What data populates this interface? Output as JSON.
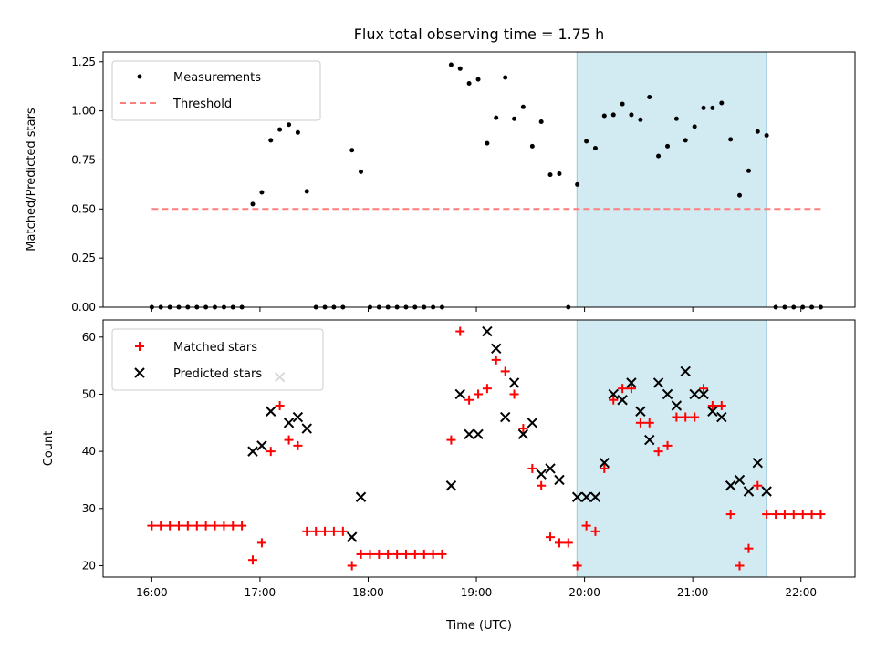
{
  "figure": {
    "title": "Flux total observing time = 1.75 h",
    "xlabel": "Time (UTC)",
    "xticks": [
      "16:00",
      "17:00",
      "18:00",
      "19:00",
      "20:00",
      "21:00",
      "22:00"
    ]
  },
  "chart_data": [
    {
      "type": "scatter",
      "ylabel": "Matched/Predicted stars",
      "xlim_hours": [
        15.55,
        22.5
      ],
      "ylim": [
        0,
        1.3
      ],
      "yticks": [
        "0.00",
        "0.25",
        "0.50",
        "0.75",
        "1.00",
        "1.25"
      ],
      "shaded_interval_hours": [
        19.93,
        21.68
      ],
      "shade_color": "#add8e6",
      "legend": [
        {
          "label": "Measurements",
          "color": "#000000",
          "marker": "dot"
        },
        {
          "label": "Threshold",
          "color": "#ff7f7f",
          "marker": "dashed-line"
        }
      ],
      "threshold": {
        "value": 0.5,
        "x_range_hours": [
          16.0,
          22.2
        ],
        "color": "#ff7f7f"
      },
      "measurements": {
        "x_hours": [
          16.0,
          16.083,
          16.167,
          16.25,
          16.333,
          16.417,
          16.5,
          16.583,
          16.667,
          16.75,
          16.833,
          16.933,
          17.017,
          17.1,
          17.183,
          17.267,
          17.35,
          17.433,
          17.517,
          17.6,
          17.683,
          17.767,
          17.85,
          17.933,
          18.017,
          18.1,
          18.183,
          18.267,
          18.35,
          18.433,
          18.517,
          18.6,
          18.683,
          18.767,
          18.85,
          18.933,
          19.017,
          19.1,
          19.183,
          19.267,
          19.35,
          19.433,
          19.517,
          19.6,
          19.683,
          19.767,
          19.85,
          19.933,
          20.017,
          20.1,
          20.183,
          20.267,
          20.35,
          20.433,
          20.517,
          20.6,
          20.683,
          20.767,
          20.85,
          20.933,
          21.017,
          21.1,
          21.183,
          21.267,
          21.35,
          21.433,
          21.517,
          21.6,
          21.683,
          21.767,
          21.85,
          21.933,
          22.017,
          22.1,
          22.183
        ],
        "values": [
          0,
          0,
          0,
          0,
          0,
          0,
          0,
          0,
          0,
          0,
          0,
          0.525,
          0.585,
          0.85,
          0.905,
          0.93,
          0.89,
          0.59,
          0,
          0,
          0,
          0,
          0.8,
          0.69,
          0,
          0,
          0,
          0,
          0,
          0,
          0,
          0,
          0,
          1.235,
          1.215,
          1.14,
          1.16,
          0.835,
          0.965,
          1.17,
          0.96,
          1.02,
          0.82,
          0.945,
          0.675,
          0.68,
          0,
          0.625,
          0.845,
          0.81,
          0.975,
          0.98,
          1.035,
          0.98,
          0.955,
          1.07,
          0.77,
          0.82,
          0.96,
          0.85,
          0.92,
          1.015,
          1.015,
          1.04,
          0.855,
          0.57,
          0.695,
          0.895,
          0.875,
          0,
          0,
          0,
          0,
          0,
          0
        ]
      }
    },
    {
      "type": "scatter",
      "ylabel": "Count",
      "xlim_hours": [
        15.55,
        22.5
      ],
      "ylim": [
        18,
        63
      ],
      "yticks": [
        "20",
        "30",
        "40",
        "50",
        "60"
      ],
      "shaded_interval_hours": [
        19.93,
        21.68
      ],
      "legend": [
        {
          "label": "Matched stars",
          "color": "#ff0000",
          "marker": "plus"
        },
        {
          "label": "Predicted stars",
          "color": "#000000",
          "marker": "x"
        }
      ],
      "series": [
        {
          "name": "Matched stars",
          "color": "#ff0000",
          "x_hours": [
            16.0,
            16.083,
            16.167,
            16.25,
            16.333,
            16.417,
            16.5,
            16.583,
            16.667,
            16.75,
            16.833,
            16.933,
            17.017,
            17.1,
            17.183,
            17.267,
            17.35,
            17.433,
            17.517,
            17.6,
            17.683,
            17.767,
            17.85,
            17.933,
            18.017,
            18.1,
            18.183,
            18.267,
            18.35,
            18.433,
            18.517,
            18.6,
            18.683,
            18.767,
            18.85,
            18.933,
            19.017,
            19.1,
            19.183,
            19.267,
            19.35,
            19.433,
            19.517,
            19.6,
            19.683,
            19.767,
            19.85,
            19.933,
            20.017,
            20.1,
            20.183,
            20.267,
            20.35,
            20.433,
            20.517,
            20.6,
            20.683,
            20.767,
            20.85,
            20.933,
            21.017,
            21.1,
            21.183,
            21.267,
            21.35,
            21.433,
            21.517,
            21.6,
            21.683,
            21.767,
            21.85,
            21.933,
            22.017,
            22.1,
            22.183
          ],
          "values": [
            27,
            27,
            27,
            27,
            27,
            27,
            27,
            27,
            27,
            27,
            27,
            21,
            24,
            40,
            48,
            42,
            41,
            26,
            26,
            26,
            26,
            26,
            20,
            22,
            22,
            22,
            22,
            22,
            22,
            22,
            22,
            22,
            22,
            42,
            61,
            49,
            50,
            51,
            56,
            54,
            50,
            44,
            37,
            34,
            25,
            24,
            24,
            20,
            27,
            26,
            37,
            49,
            51,
            51,
            45,
            45,
            40,
            41,
            46,
            46,
            46,
            51,
            48,
            48,
            29,
            20,
            23,
            34,
            29,
            29,
            29,
            29,
            29,
            29,
            29
          ]
        },
        {
          "name": "Predicted stars",
          "color": "#000000",
          "x_hours": [
            16.933,
            17.017,
            17.1,
            17.183,
            17.267,
            17.35,
            17.433,
            17.85,
            17.933,
            18.767,
            18.85,
            18.933,
            19.017,
            19.1,
            19.183,
            19.267,
            19.35,
            19.433,
            19.517,
            19.6,
            19.683,
            19.767,
            19.933,
            20.017,
            20.1,
            20.183,
            20.267,
            20.35,
            20.433,
            20.517,
            20.6,
            20.683,
            20.767,
            20.85,
            20.933,
            21.017,
            21.1,
            21.183,
            21.267,
            21.35,
            21.433,
            21.517,
            21.6,
            21.683
          ],
          "values": [
            40,
            41,
            47,
            53,
            45,
            46,
            44,
            25,
            32,
            34,
            50,
            43,
            43,
            61,
            58,
            46,
            52,
            43,
            45,
            36,
            37,
            35,
            32,
            32,
            32,
            38,
            50,
            49,
            52,
            47,
            42,
            52,
            50,
            48,
            54,
            50,
            50,
            47,
            46,
            34,
            35,
            33,
            38,
            33
          ]
        }
      ]
    }
  ]
}
